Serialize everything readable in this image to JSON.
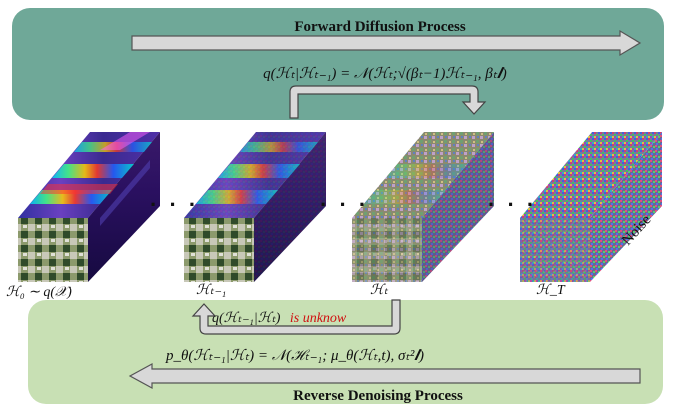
{
  "forward": {
    "title": "Forward Diffusion Process",
    "equation": "q(ℋₜ|ℋₜ₋₁) = 𝒩(ℋₜ;√(βₜ−1)ℋₜ₋₁, βₜ𝑰)"
  },
  "reverse": {
    "title": "Reverse Denoising Process",
    "posterior": "q(ℋₜ₋₁|ℋₜ)",
    "posterior_note": "is unknow",
    "equation": "p_θ(ℋₜ₋₁|ℋₜ) = 𝒩(ℋₜ₋₁; μ_θ(ℋₜ,t), σₜ²𝑰)"
  },
  "stages": [
    {
      "label": "ℋ₀ ∼ q(𝒳)"
    },
    {
      "label": "ℋₜ₋₁"
    },
    {
      "label": "ℋₜ"
    },
    {
      "label": "ℋ_T"
    }
  ],
  "ellipsis": "· · ·",
  "noise_label": "Noise",
  "colors": {
    "forward_panel": "#6fa898",
    "reverse_panel": "#c8e0b4",
    "arrow_fill": "#d8d8d8",
    "arrow_stroke": "#555555",
    "note_red": "#d01010"
  }
}
